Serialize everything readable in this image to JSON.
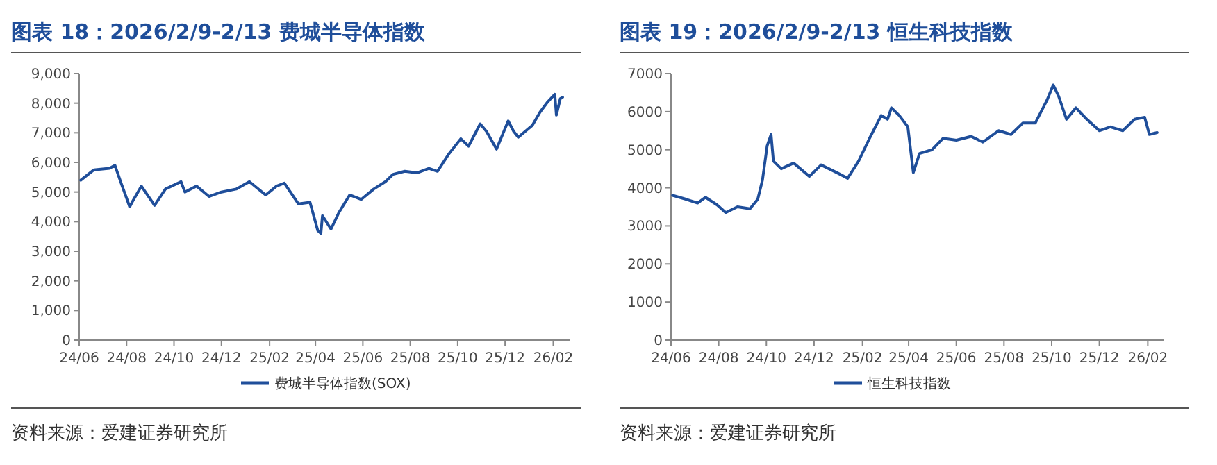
{
  "chart_data": [
    {
      "type": "line",
      "title": "图表 18：2026/2/9-2/13  费城半导体指数",
      "legend": "bottom",
      "grid": false,
      "annotations": [
        "资料来源：爱建证券研究所"
      ],
      "xlim": [
        "2024-06-01",
        "2026-02-22"
      ],
      "xticks": [
        {
          "value": "2024-06-01",
          "label": "24/06"
        },
        {
          "value": "2024-08-01",
          "label": "24/08"
        },
        {
          "value": "2024-10-01",
          "label": "24/10"
        },
        {
          "value": "2024-12-01",
          "label": "24/12"
        },
        {
          "value": "2025-02-01",
          "label": "25/02"
        },
        {
          "value": "2025-04-01",
          "label": "25/04"
        },
        {
          "value": "2025-06-01",
          "label": "25/06"
        },
        {
          "value": "2025-08-01",
          "label": "25/08"
        },
        {
          "value": "2025-10-01",
          "label": "25/10"
        },
        {
          "value": "2025-12-01",
          "label": "25/12"
        },
        {
          "value": "2026-02-01",
          "label": "26/02"
        }
      ],
      "ylim": [
        0,
        9000
      ],
      "yticks": [
        0,
        {
          "value": 1000,
          "label": "1,000"
        },
        {
          "value": 2000,
          "label": "2,000"
        },
        {
          "value": 3000,
          "label": "3,000"
        },
        {
          "value": 4000,
          "label": "4,000"
        },
        {
          "value": 5000,
          "label": "5,000"
        },
        {
          "value": 6000,
          "label": "6,000"
        },
        {
          "value": 7000,
          "label": "7,000"
        },
        {
          "value": 8000,
          "label": "8,000"
        },
        {
          "value": 9000,
          "label": "9,000"
        }
      ],
      "series": [
        {
          "name": "费城半导体指数(SOX)",
          "color": "#1f4e9a",
          "x": [
            "2024-06-03",
            "2024-06-20",
            "2024-07-10",
            "2024-07-17",
            "2024-07-25",
            "2024-08-05",
            "2024-08-08",
            "2024-08-20",
            "2024-09-06",
            "2024-09-20",
            "2024-10-10",
            "2024-10-15",
            "2024-10-30",
            "2024-11-15",
            "2024-12-01",
            "2024-12-20",
            "2025-01-06",
            "2025-01-27",
            "2025-02-10",
            "2025-02-20",
            "2025-03-10",
            "2025-03-25",
            "2025-04-04",
            "2025-04-08",
            "2025-04-10",
            "2025-04-21",
            "2025-05-01",
            "2025-05-15",
            "2025-05-30",
            "2025-06-15",
            "2025-06-30",
            "2025-07-10",
            "2025-07-25",
            "2025-08-10",
            "2025-08-25",
            "2025-09-05",
            "2025-09-20",
            "2025-10-05",
            "2025-10-15",
            "2025-10-30",
            "2025-11-07",
            "2025-11-20",
            "2025-12-05",
            "2025-12-12",
            "2025-12-18",
            "2026-01-05",
            "2026-01-15",
            "2026-01-25",
            "2026-02-03",
            "2026-02-05",
            "2026-02-10",
            "2026-02-13"
          ],
          "values": [
            5400,
            5750,
            5800,
            5900,
            5300,
            4500,
            4650,
            5200,
            4550,
            5100,
            5350,
            5000,
            5200,
            4850,
            5000,
            5100,
            5350,
            4900,
            5200,
            5300,
            4600,
            4650,
            3700,
            3600,
            4200,
            3750,
            4300,
            4900,
            4750,
            5100,
            5350,
            5600,
            5700,
            5650,
            5800,
            5700,
            6300,
            6800,
            6550,
            7300,
            7050,
            6450,
            7400,
            7050,
            6850,
            7250,
            7700,
            8050,
            8300,
            7600,
            8150,
            8200
          ]
        }
      ]
    },
    {
      "type": "line",
      "title": "图表 19：2026/2/9-2/13  恒生科技指数",
      "legend": "bottom",
      "grid": false,
      "annotations": [
        "资料来源：爱建证券研究所"
      ],
      "xlim": [
        "2024-06-01",
        "2026-02-22"
      ],
      "xticks": [
        {
          "value": "2024-06-01",
          "label": "24/06"
        },
        {
          "value": "2024-08-01",
          "label": "24/08"
        },
        {
          "value": "2024-10-01",
          "label": "24/10"
        },
        {
          "value": "2024-12-01",
          "label": "24/12"
        },
        {
          "value": "2025-02-01",
          "label": "25/02"
        },
        {
          "value": "2025-04-01",
          "label": "25/04"
        },
        {
          "value": "2025-06-01",
          "label": "25/06"
        },
        {
          "value": "2025-08-01",
          "label": "25/08"
        },
        {
          "value": "2025-10-01",
          "label": "25/10"
        },
        {
          "value": "2025-12-01",
          "label": "25/12"
        },
        {
          "value": "2026-02-01",
          "label": "26/02"
        }
      ],
      "ylim": [
        0,
        7000
      ],
      "yticks": [
        0,
        1000,
        2000,
        3000,
        4000,
        5000,
        6000,
        7000
      ],
      "series": [
        {
          "name": "恒生科技指数",
          "color": "#1f4e9a",
          "x": [
            "2024-06-03",
            "2024-06-20",
            "2024-07-05",
            "2024-07-15",
            "2024-07-30",
            "2024-08-10",
            "2024-08-25",
            "2024-09-10",
            "2024-09-20",
            "2024-09-26",
            "2024-10-02",
            "2024-10-07",
            "2024-10-10",
            "2024-10-20",
            "2024-11-05",
            "2024-11-25",
            "2024-12-10",
            "2024-12-30",
            "2025-01-13",
            "2025-01-27",
            "2025-02-10",
            "2025-02-25",
            "2025-03-05",
            "2025-03-10",
            "2025-03-20",
            "2025-03-31",
            "2025-04-07",
            "2025-04-15",
            "2025-05-01",
            "2025-05-15",
            "2025-06-01",
            "2025-06-20",
            "2025-07-05",
            "2025-07-25",
            "2025-08-10",
            "2025-08-25",
            "2025-09-10",
            "2025-09-25",
            "2025-10-03",
            "2025-10-10",
            "2025-10-20",
            "2025-11-01",
            "2025-11-15",
            "2025-12-01",
            "2025-12-15",
            "2025-12-31",
            "2026-01-15",
            "2026-01-28",
            "2026-02-03",
            "2026-02-13"
          ],
          "values": [
            3800,
            3700,
            3600,
            3750,
            3550,
            3350,
            3500,
            3450,
            3700,
            4200,
            5100,
            5400,
            4700,
            4500,
            4650,
            4300,
            4600,
            4400,
            4250,
            4700,
            5300,
            5900,
            5800,
            6100,
            5900,
            5600,
            4400,
            4900,
            5000,
            5300,
            5250,
            5350,
            5200,
            5500,
            5400,
            5700,
            5700,
            6300,
            6700,
            6400,
            5800,
            6100,
            5800,
            5500,
            5600,
            5500,
            5800,
            5850,
            5400,
            5450
          ]
        }
      ]
    }
  ]
}
